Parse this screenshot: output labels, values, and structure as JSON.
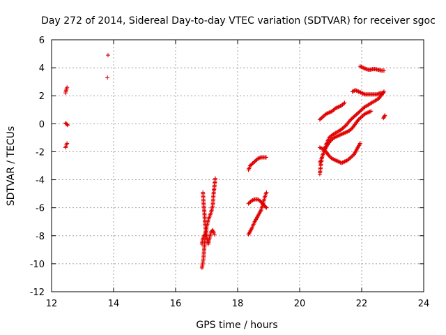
{
  "chart_data": {
    "type": "scatter",
    "title": "Day 272 of 2014, Sidereal Day-to-day VTEC variation (SDTVAR) for receiver sgoc",
    "xlabel": "GPS time / hours",
    "ylabel": "SDTVAR / TECUs",
    "xlim": [
      12,
      24
    ],
    "ylim": [
      -12,
      6
    ],
    "xticks": [
      12,
      14,
      16,
      18,
      20,
      22,
      24
    ],
    "yticks": [
      -12,
      -10,
      -8,
      -6,
      -4,
      -2,
      0,
      2,
      4,
      6
    ],
    "grid": true,
    "marker": "plus",
    "color": "#e00000",
    "series": [
      {
        "name": "sdtvar",
        "segments": [
          [
            [
              12.45,
              2.2
            ],
            [
              12.47,
              2.4
            ],
            [
              12.5,
              2.6
            ]
          ],
          [
            [
              12.45,
              0.05
            ],
            [
              12.5,
              -0.05
            ],
            [
              12.52,
              -0.1
            ]
          ],
          [
            [
              12.45,
              -1.7
            ],
            [
              12.48,
              -1.5
            ],
            [
              12.5,
              -1.4
            ]
          ],
          [
            [
              13.82,
              4.9
            ]
          ],
          [
            [
              13.8,
              3.3
            ]
          ],
          [
            [
              16.85,
              -10.3
            ],
            [
              16.9,
              -9.6
            ],
            [
              16.92,
              -9.0
            ],
            [
              16.95,
              -8.2
            ],
            [
              16.98,
              -7.6
            ],
            [
              17.02,
              -7.2
            ],
            [
              17.05,
              -6.9
            ],
            [
              17.1,
              -6.6
            ],
            [
              17.15,
              -6.3
            ],
            [
              17.2,
              -5.8
            ],
            [
              17.22,
              -5.1
            ],
            [
              17.25,
              -4.5
            ],
            [
              17.28,
              -3.9
            ]
          ],
          [
            [
              16.88,
              -4.9
            ],
            [
              16.9,
              -5.6
            ],
            [
              16.93,
              -6.4
            ],
            [
              16.95,
              -7.2
            ],
            [
              16.98,
              -7.8
            ],
            [
              17.02,
              -8.3
            ],
            [
              17.05,
              -8.6
            ],
            [
              17.1,
              -8.1
            ],
            [
              17.15,
              -7.7
            ],
            [
              17.2,
              -7.6
            ],
            [
              17.25,
              -7.9
            ]
          ],
          [
            [
              16.85,
              -8.6
            ],
            [
              16.88,
              -8.2
            ],
            [
              16.92,
              -8.0
            ],
            [
              16.96,
              -7.8
            ],
            [
              17.0,
              -7.6
            ]
          ],
          [
            [
              18.35,
              -3.3
            ],
            [
              18.4,
              -3.0
            ],
            [
              18.45,
              -2.9
            ],
            [
              18.55,
              -2.7
            ],
            [
              18.65,
              -2.5
            ],
            [
              18.75,
              -2.4
            ],
            [
              18.85,
              -2.4
            ],
            [
              18.92,
              -2.4
            ]
          ],
          [
            [
              18.35,
              -7.9
            ],
            [
              18.45,
              -7.5
            ],
            [
              18.55,
              -7.0
            ],
            [
              18.65,
              -6.6
            ],
            [
              18.75,
              -6.2
            ],
            [
              18.82,
              -5.7
            ],
            [
              18.88,
              -5.2
            ],
            [
              18.93,
              -4.9
            ]
          ],
          [
            [
              18.35,
              -5.7
            ],
            [
              18.45,
              -5.5
            ],
            [
              18.55,
              -5.4
            ],
            [
              18.65,
              -5.4
            ],
            [
              18.72,
              -5.5
            ],
            [
              18.8,
              -5.7
            ],
            [
              18.88,
              -5.9
            ],
            [
              18.93,
              -6.0
            ]
          ],
          [
            [
              20.65,
              -3.6
            ],
            [
              20.68,
              -3.0
            ],
            [
              20.72,
              -2.4
            ],
            [
              20.78,
              -2.0
            ],
            [
              20.85,
              -1.5
            ],
            [
              20.95,
              -1.0
            ],
            [
              21.05,
              -0.8
            ],
            [
              21.2,
              -0.6
            ],
            [
              21.35,
              -0.4
            ],
            [
              21.5,
              -0.1
            ],
            [
              21.65,
              0.3
            ],
            [
              21.8,
              0.6
            ],
            [
              21.95,
              0.9
            ],
            [
              22.1,
              1.2
            ],
            [
              22.25,
              1.4
            ],
            [
              22.4,
              1.6
            ],
            [
              22.55,
              1.8
            ],
            [
              22.65,
              2.1
            ],
            [
              22.72,
              2.3
            ]
          ],
          [
            [
              20.65,
              0.3
            ],
            [
              20.75,
              0.5
            ],
            [
              20.85,
              0.7
            ],
            [
              20.95,
              0.8
            ],
            [
              21.05,
              0.9
            ],
            [
              21.15,
              1.1
            ],
            [
              21.25,
              1.2
            ],
            [
              21.35,
              1.3
            ],
            [
              21.45,
              1.5
            ]
          ],
          [
            [
              20.65,
              -1.7
            ],
            [
              20.75,
              -1.8
            ],
            [
              20.85,
              -2.0
            ],
            [
              20.95,
              -2.3
            ],
            [
              21.05,
              -2.5
            ],
            [
              21.15,
              -2.6
            ],
            [
              21.25,
              -2.7
            ],
            [
              21.35,
              -2.8
            ],
            [
              21.45,
              -2.7
            ],
            [
              21.55,
              -2.6
            ],
            [
              21.65,
              -2.4
            ],
            [
              21.75,
              -2.2
            ],
            [
              21.85,
              -1.8
            ],
            [
              21.95,
              -1.4
            ]
          ],
          [
            [
              20.65,
              -2.8
            ],
            [
              20.72,
              -2.4
            ],
            [
              20.8,
              -1.9
            ],
            [
              20.9,
              -1.5
            ],
            [
              21.0,
              -1.2
            ],
            [
              21.1,
              -1.0
            ],
            [
              21.2,
              -0.9
            ],
            [
              21.3,
              -0.8
            ],
            [
              21.4,
              -0.7
            ],
            [
              21.5,
              -0.6
            ],
            [
              21.6,
              -0.5
            ],
            [
              21.7,
              -0.3
            ],
            [
              21.8,
              0.0
            ],
            [
              21.9,
              0.3
            ],
            [
              22.0,
              0.5
            ],
            [
              22.1,
              0.7
            ],
            [
              22.2,
              0.8
            ],
            [
              22.3,
              0.9
            ]
          ],
          [
            [
              21.7,
              2.3
            ],
            [
              21.8,
              2.4
            ],
            [
              21.9,
              2.3
            ],
            [
              22.0,
              2.2
            ],
            [
              22.1,
              2.1
            ],
            [
              22.2,
              2.1
            ],
            [
              22.3,
              2.1
            ],
            [
              22.4,
              2.1
            ],
            [
              22.5,
              2.1
            ],
            [
              22.6,
              2.2
            ],
            [
              22.7,
              2.2
            ]
          ],
          [
            [
              21.95,
              4.1
            ],
            [
              22.05,
              4.0
            ],
            [
              22.15,
              3.9
            ],
            [
              22.25,
              3.85
            ],
            [
              22.35,
              3.9
            ],
            [
              22.45,
              3.9
            ],
            [
              22.55,
              3.85
            ],
            [
              22.65,
              3.8
            ],
            [
              22.72,
              3.8
            ]
          ],
          [
            [
              22.7,
              0.4
            ],
            [
              22.75,
              0.6
            ]
          ]
        ]
      }
    ]
  }
}
